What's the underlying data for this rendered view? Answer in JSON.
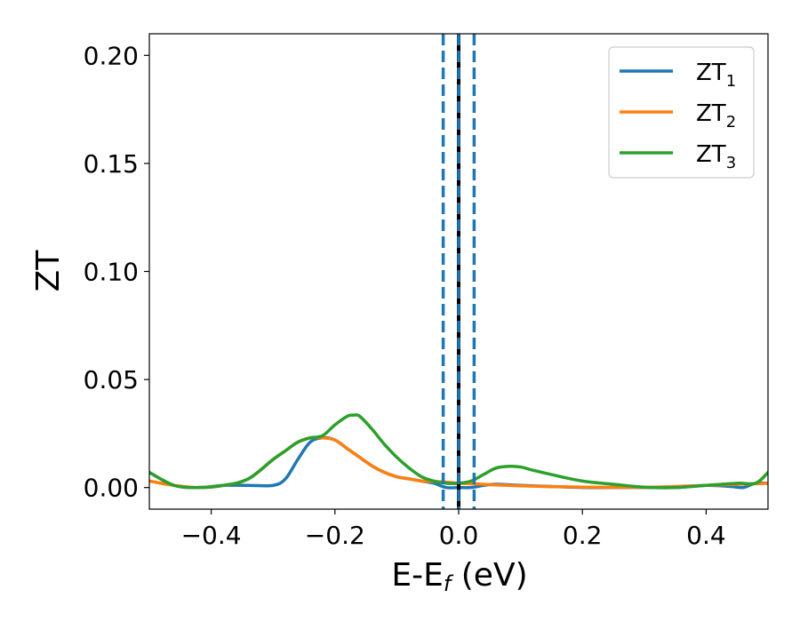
{
  "chart_data": {
    "type": "line",
    "xlabel": "E-E",
    "xlabel_sub": "f",
    "xlabel_unit": " (eV)",
    "ylabel": "ZT",
    "xlim": [
      -0.5,
      0.5
    ],
    "ylim": [
      -0.01,
      0.21
    ],
    "xticks": [
      -0.4,
      -0.2,
      0.0,
      0.2,
      0.4
    ],
    "xtick_labels": [
      "−0.4",
      "−0.2",
      "0.0",
      "0.2",
      "0.4"
    ],
    "yticks": [
      0.0,
      0.05,
      0.1,
      0.15,
      0.2
    ],
    "ytick_labels": [
      "0.00",
      "0.05",
      "0.10",
      "0.15",
      "0.20"
    ],
    "legend_position": "top-right",
    "grid": false,
    "vlines": [
      {
        "x": 0.0,
        "color": "#000000",
        "style": "solid"
      },
      {
        "x": -0.025,
        "color": "#1f77b4",
        "style": "dashed"
      },
      {
        "x": 0.0,
        "color": "#1f77b4",
        "style": "dashed"
      },
      {
        "x": 0.025,
        "color": "#1f77b4",
        "style": "dashed"
      }
    ],
    "series": [
      {
        "name": "ZT",
        "name_sub": "1",
        "color": "#1f77b4",
        "x": [
          -0.5,
          -0.46,
          -0.42,
          -0.38,
          -0.34,
          -0.3,
          -0.28,
          -0.26,
          -0.24,
          -0.22,
          -0.2,
          -0.18,
          -0.16,
          -0.14,
          -0.12,
          -0.1,
          -0.08,
          -0.06,
          -0.04,
          -0.02,
          0.0,
          0.02,
          0.04,
          0.06,
          0.1,
          0.15,
          0.2,
          0.25,
          0.3,
          0.35,
          0.4,
          0.44,
          0.46,
          0.48,
          0.5
        ],
        "y": [
          0.007,
          0.001,
          0.0,
          0.001,
          0.001,
          0.001,
          0.004,
          0.013,
          0.021,
          0.023,
          0.022,
          0.018,
          0.014,
          0.01,
          0.007,
          0.005,
          0.004,
          0.003,
          0.002,
          0.0,
          0.0,
          0.0,
          0.001,
          0.0015,
          0.001,
          0.0005,
          0.0,
          0.0,
          0.0,
          0.0,
          0.001,
          0.0005,
          0.0,
          0.002,
          0.002
        ]
      },
      {
        "name": "ZT",
        "name_sub": "2",
        "color": "#ff7f0e",
        "x": [
          -0.5,
          -0.46,
          -0.42,
          -0.38,
          -0.34,
          -0.3,
          -0.28,
          -0.26,
          -0.24,
          -0.22,
          -0.2,
          -0.18,
          -0.16,
          -0.14,
          -0.12,
          -0.1,
          -0.08,
          -0.06,
          -0.04,
          -0.02,
          0.0,
          0.02,
          0.04,
          0.06,
          0.1,
          0.15,
          0.2,
          0.25,
          0.3,
          0.35,
          0.4,
          0.45,
          0.5
        ],
        "y": [
          0.003,
          0.001,
          0.0,
          0.001,
          0.004,
          0.013,
          0.017,
          0.021,
          0.023,
          0.023,
          0.022,
          0.018,
          0.014,
          0.01,
          0.007,
          0.005,
          0.004,
          0.003,
          0.0028,
          0.0025,
          0.002,
          0.0018,
          0.0015,
          0.0012,
          0.0008,
          0.0004,
          0.0002,
          0.0001,
          0.0001,
          0.0005,
          0.001,
          0.0015,
          0.002
        ]
      },
      {
        "name": "ZT",
        "name_sub": "3",
        "color": "#2ca02c",
        "x": [
          -0.5,
          -0.46,
          -0.42,
          -0.38,
          -0.34,
          -0.3,
          -0.28,
          -0.26,
          -0.24,
          -0.22,
          -0.2,
          -0.18,
          -0.17,
          -0.16,
          -0.14,
          -0.12,
          -0.1,
          -0.08,
          -0.06,
          -0.04,
          -0.02,
          0.0,
          0.02,
          0.04,
          0.06,
          0.08,
          0.1,
          0.12,
          0.15,
          0.2,
          0.25,
          0.3,
          0.35,
          0.4,
          0.45,
          0.48,
          0.5
        ],
        "y": [
          0.007,
          0.001,
          0.0,
          0.001,
          0.004,
          0.013,
          0.017,
          0.021,
          0.023,
          0.024,
          0.029,
          0.033,
          0.0335,
          0.033,
          0.027,
          0.02,
          0.014,
          0.009,
          0.005,
          0.003,
          0.002,
          0.002,
          0.003,
          0.006,
          0.009,
          0.0098,
          0.0095,
          0.008,
          0.006,
          0.003,
          0.0015,
          0.0002,
          0.0,
          0.001,
          0.002,
          0.002,
          0.007
        ]
      }
    ]
  }
}
